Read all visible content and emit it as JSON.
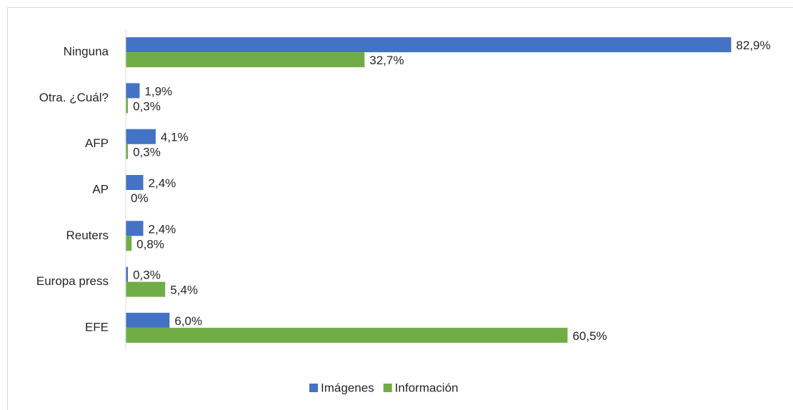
{
  "chart_data": {
    "type": "hbar",
    "categories": [
      "Ninguna",
      "Otra. ¿Cuál?",
      "AFP",
      "AP",
      "Reuters",
      "Europa press",
      "EFE"
    ],
    "series": [
      {
        "name": "Imágenes",
        "color": "#4472c4",
        "values": [
          82.9,
          1.9,
          4.1,
          2.4,
          2.4,
          0.3,
          6.0
        ],
        "value_labels": [
          "82,9%",
          "1,9%",
          "4,1%",
          "2,4%",
          "2,4%",
          "0,3%",
          "6,0%"
        ]
      },
      {
        "name": "Información",
        "color": "#70ad47",
        "values": [
          32.7,
          0.3,
          0.3,
          0,
          0.8,
          5.4,
          60.5
        ],
        "value_labels": [
          "32,7%",
          "0,3%",
          "0,3%",
          "0%",
          "0,8%",
          "5,4%",
          "60,5%"
        ]
      }
    ],
    "xlim": [
      0,
      90
    ],
    "legend": "bottom"
  }
}
